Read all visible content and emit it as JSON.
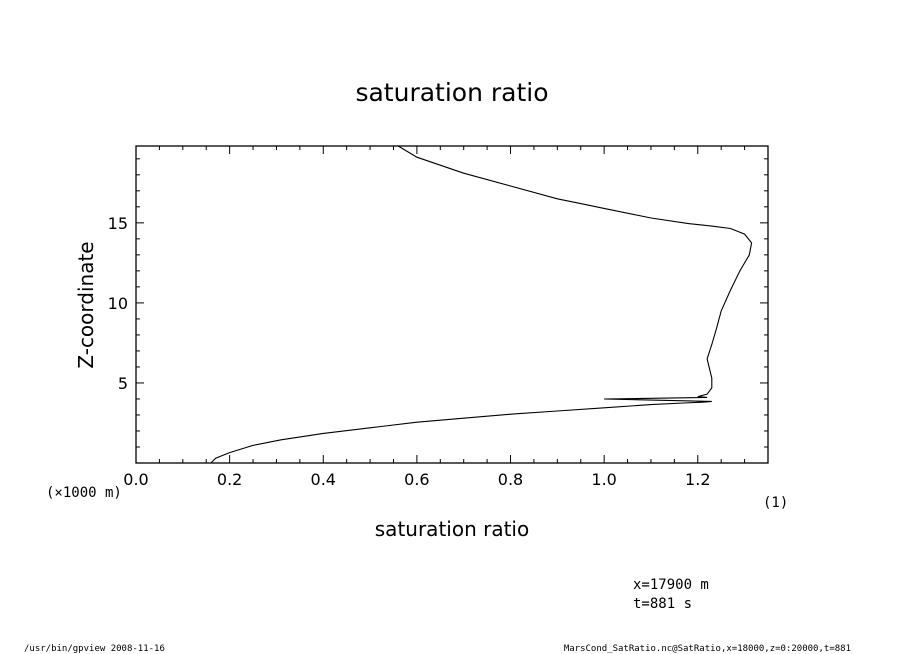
{
  "chart_data": {
    "type": "line",
    "title": "saturation ratio",
    "xlabel": "saturation ratio",
    "ylabel": "Z-coordinate",
    "y_unit": "(×1000 m)",
    "xlim": [
      0.0,
      1.35
    ],
    "ylim": [
      0,
      19.8
    ],
    "x_ticks": [
      "0.0",
      "0.2",
      "0.4",
      "0.6",
      "0.8",
      "1.0",
      "1.2"
    ],
    "y_ticks": [
      "5",
      "10",
      "15"
    ],
    "grid": false,
    "series": [
      {
        "x": [
          0.16,
          0.17,
          0.2,
          0.25,
          0.31,
          0.4,
          0.5,
          0.6,
          0.7,
          0.8,
          0.9,
          1.0,
          1.1,
          1.17,
          1.21,
          1.23,
          1.0,
          1.22,
          1.2,
          1.22,
          1.23,
          1.23,
          1.22,
          1.23,
          1.24,
          1.25,
          1.27,
          1.29,
          1.31,
          1.315,
          1.3,
          1.27,
          1.23,
          1.18,
          1.1,
          1.0,
          0.95,
          0.9,
          0.8,
          0.7,
          0.6,
          0.56
        ],
        "y": [
          0.0,
          0.3,
          0.65,
          1.1,
          1.45,
          1.85,
          2.2,
          2.55,
          2.8,
          3.05,
          3.25,
          3.45,
          3.65,
          3.75,
          3.8,
          3.85,
          4.0,
          4.1,
          4.15,
          4.3,
          4.7,
          5.3,
          6.5,
          7.4,
          8.4,
          9.5,
          10.8,
          12.0,
          13.0,
          13.75,
          14.3,
          14.65,
          14.8,
          14.95,
          15.3,
          15.9,
          16.2,
          16.5,
          17.3,
          18.1,
          19.1,
          19.8
        ]
      }
    ]
  },
  "axis_index_label": "(1)",
  "info": {
    "x_value": "x=17900  m",
    "t_value": "t=881  s"
  },
  "footer": {
    "left": "/usr/bin/gpview   2008-11-16",
    "right": "MarsCond_SatRatio.nc@SatRatio,x=18000,z=0:20000,t=881"
  }
}
